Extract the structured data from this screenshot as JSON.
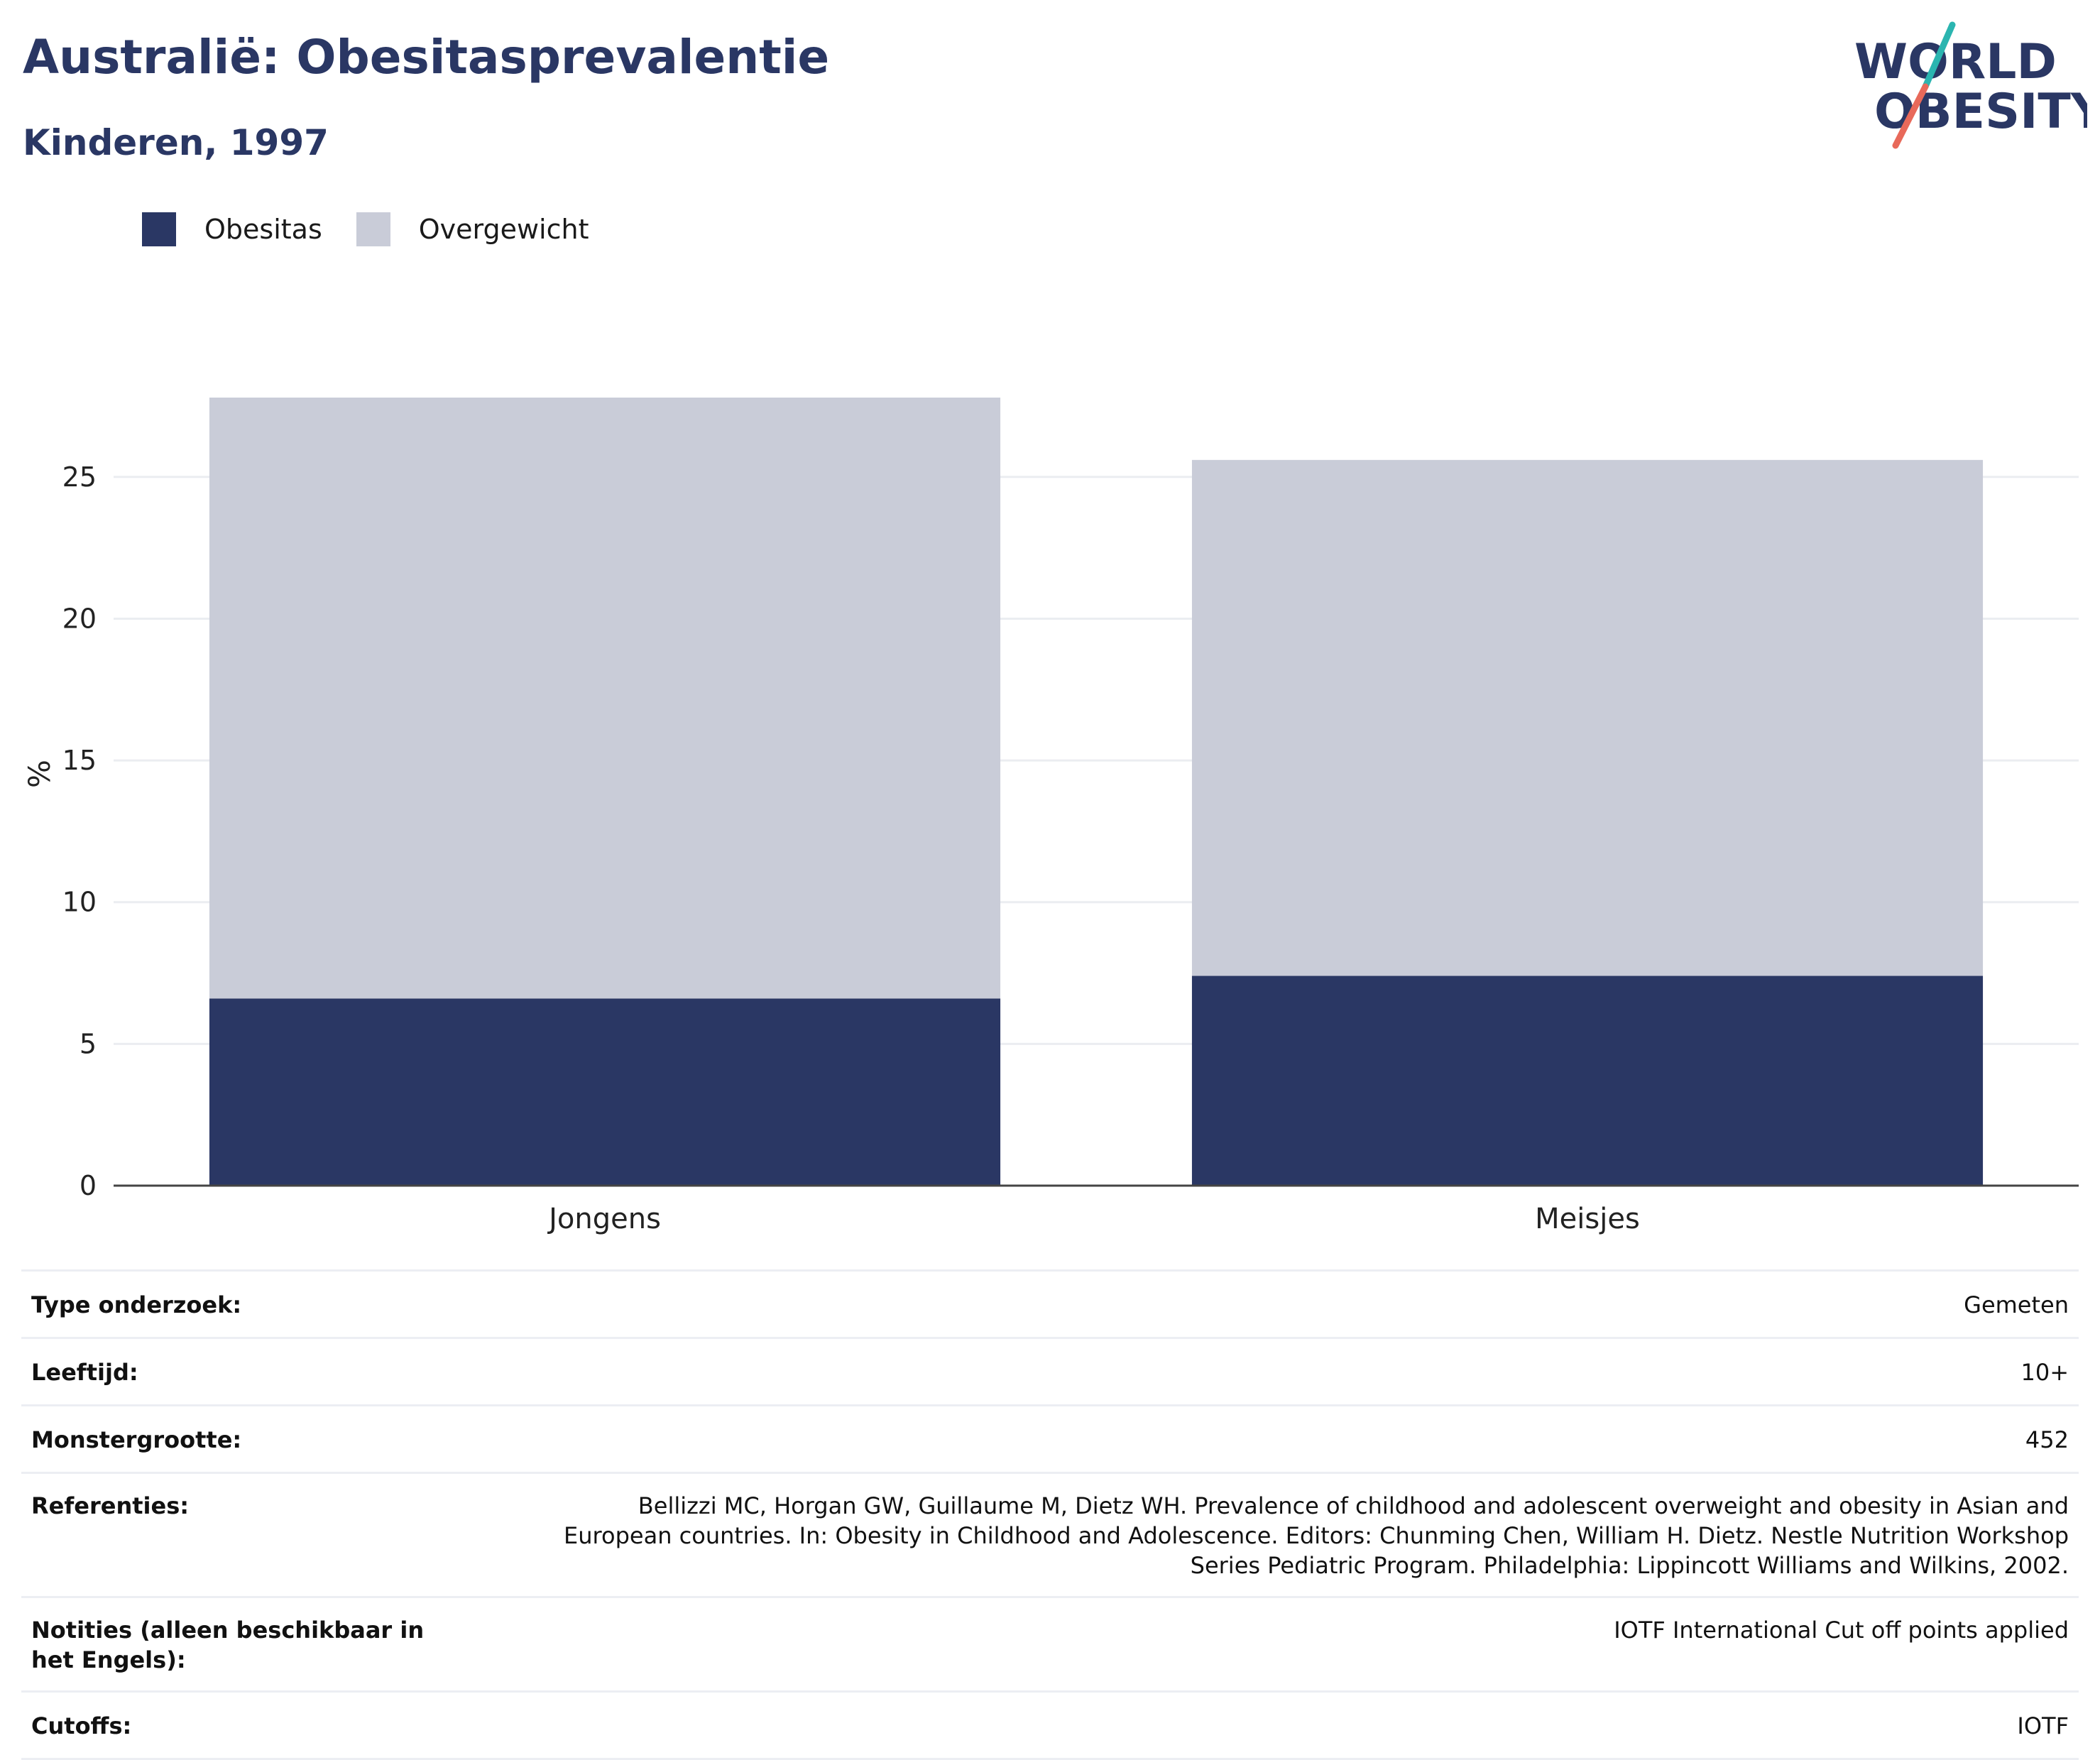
{
  "title": "Australië: Obesitasprevalentie",
  "subtitle": "Kinderen, 1997",
  "logo": {
    "line1": "WORLD",
    "line2": "OBESITY"
  },
  "colors": {
    "obesitas": "#2a3764",
    "overgewicht": "#c9ccd8",
    "title": "#2a3764",
    "logo_teal": "#2bb5b0",
    "logo_coral": "#e8695a"
  },
  "chart_data": {
    "type": "bar",
    "stacked": true,
    "categories": [
      "Jongens",
      "Meisjes"
    ],
    "series": [
      {
        "name": "Obesitas",
        "values": [
          6.6,
          7.4
        ]
      },
      {
        "name": "Overgewicht",
        "values": [
          21.2,
          18.2
        ]
      }
    ],
    "ylabel": "%",
    "xlabel": "",
    "ylim": [
      0,
      27.8
    ],
    "yticks": [
      0,
      5,
      10,
      15,
      20,
      25
    ],
    "grid": true,
    "legend": "top-left"
  },
  "details": [
    {
      "label": "Type onderzoek:",
      "value": [
        "Gemeten"
      ]
    },
    {
      "label": "Leeftijd:",
      "value": [
        "10+"
      ]
    },
    {
      "label": "Monstergrootte:",
      "value": [
        "452"
      ]
    },
    {
      "label": "Referenties:",
      "value": [
        "Bellizzi MC, Horgan GW, Guillaume M, Dietz WH. Prevalence of childhood and adolescent overweight and obesity in Asian and",
        "European countries. In: Obesity in Childhood and Adolescence. Editors: Chunming Chen, William H. Dietz. Nestle Nutrition Workshop",
        "Series Pediatric Program. Philadelphia: Lippincott Williams and Wilkins, 2002."
      ]
    },
    {
      "label": "Notities (alleen beschikbaar in het Engels):",
      "value": [
        "IOTF International Cut off points applied"
      ]
    },
    {
      "label": "Cutoffs:",
      "value": [
        "IOTF"
      ]
    }
  ]
}
